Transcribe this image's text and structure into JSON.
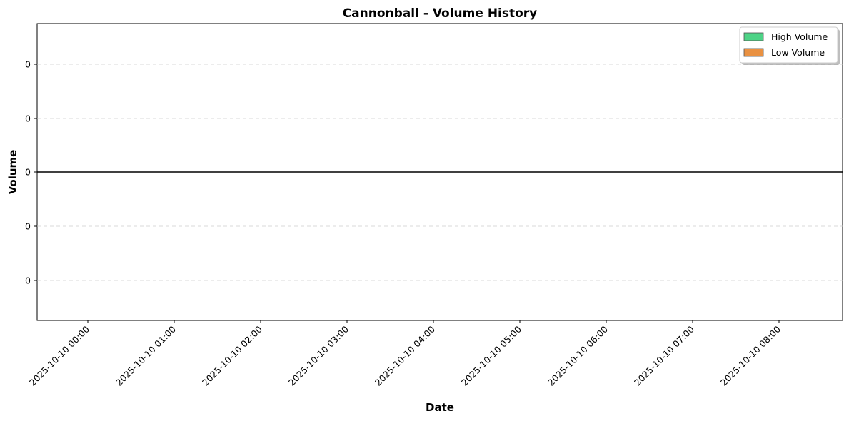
{
  "chart_data": {
    "type": "bar",
    "title": "Cannonball - Volume History",
    "xlabel": "Date",
    "ylabel": "Volume",
    "x_ticks": [
      "2025-10-10 00:00",
      "2025-10-10 01:00",
      "2025-10-10 02:00",
      "2025-10-10 03:00",
      "2025-10-10 04:00",
      "2025-10-10 05:00",
      "2025-10-10 06:00",
      "2025-10-10 07:00",
      "2025-10-10 08:00"
    ],
    "y_ticks": [
      "0",
      "0",
      "0",
      "0",
      "0"
    ],
    "series": [
      {
        "name": "High Volume",
        "color": "#2ecc71",
        "values": []
      },
      {
        "name": "Low Volume",
        "color": "#e67e22",
        "values": []
      }
    ],
    "zero_line": true,
    "grid": "y-dashed",
    "legend": "top-right"
  }
}
